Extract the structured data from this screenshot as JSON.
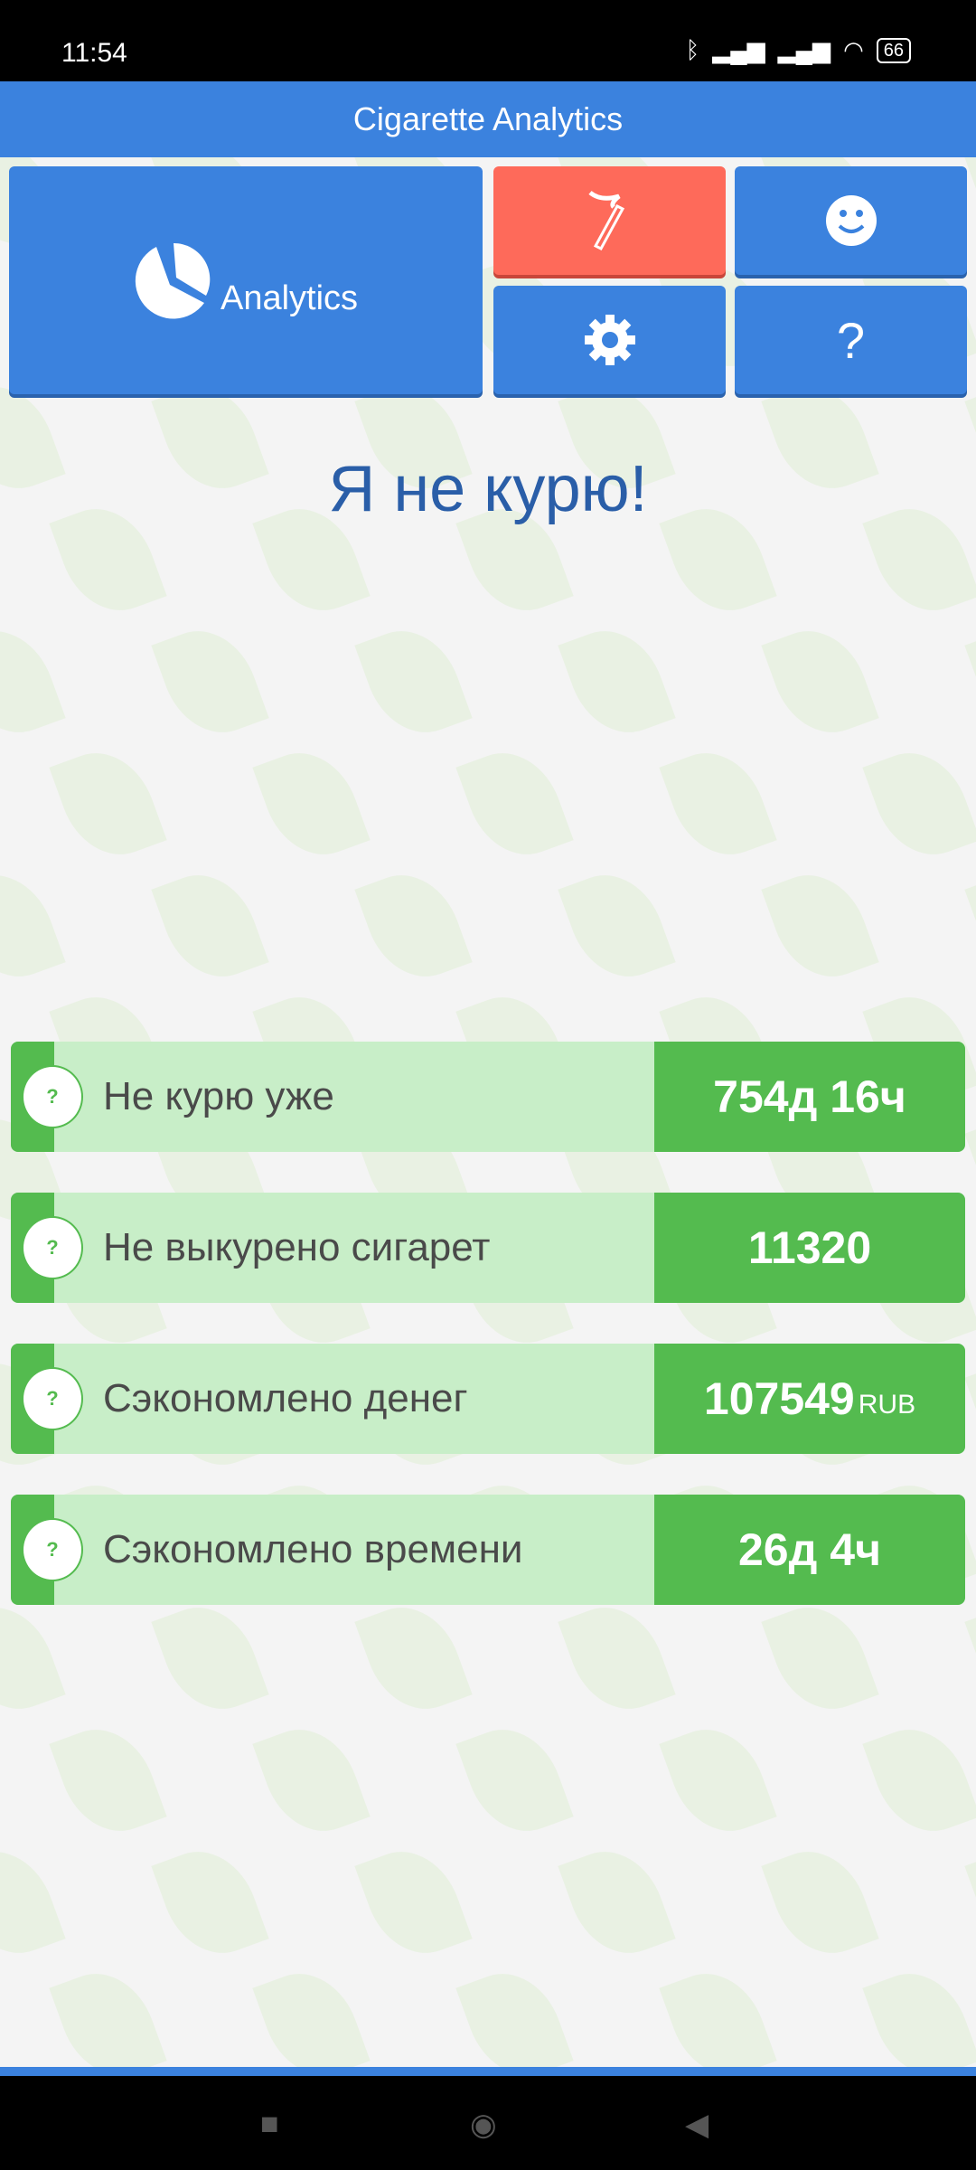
{
  "status_bar": {
    "time": "11:54",
    "battery": "66"
  },
  "header": {
    "title": "Cigarette Analytics"
  },
  "tiles": {
    "analytics_label": "Analytics"
  },
  "main": {
    "title": "Я не курю!"
  },
  "stats": [
    {
      "label": "Не курю уже",
      "value": "754д 16ч",
      "unit": ""
    },
    {
      "label": "Не выкурено сигарет",
      "value": "11320",
      "unit": ""
    },
    {
      "label": "Сэкономлено денег",
      "value": "107549",
      "unit": "RUB"
    },
    {
      "label": "Сэкономлено времени",
      "value": "26д 4ч",
      "unit": ""
    }
  ],
  "help_glyph": "?",
  "colors": {
    "primary": "#3b82de",
    "accent_red": "#fe6a5a",
    "green": "#54bb4f",
    "light_green": "#c8eec8"
  }
}
